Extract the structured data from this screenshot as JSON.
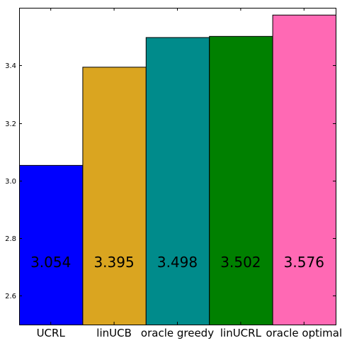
{
  "chart_data": {
    "type": "bar",
    "categories": [
      "UCRL",
      "linUCB",
      "oracle greedy",
      "linUCRL",
      "oracle optimal"
    ],
    "values": [
      3.054,
      3.395,
      3.498,
      3.502,
      3.576
    ],
    "data_labels": [
      "3.054",
      "3.395",
      "3.498",
      "3.502",
      "3.576"
    ],
    "colors": [
      "#0000ff",
      "#daa520",
      "#008b8b",
      "#008000",
      "#ff69b4"
    ],
    "ylim": [
      2.5,
      3.6
    ],
    "yticks": [
      2.6,
      2.8,
      3.0,
      3.2,
      3.4
    ],
    "ytick_labels": [
      "2.6",
      "2.8",
      "3.0",
      "3.2",
      "3.4"
    ],
    "title": "",
    "xlabel": "",
    "ylabel": "",
    "grid": false,
    "legend": false,
    "data_labels_position": "inside-bar-lower"
  }
}
